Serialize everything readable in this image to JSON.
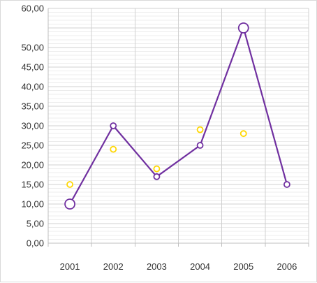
{
  "chart_data": {
    "type": "line",
    "categories": [
      "2001",
      "2002",
      "2003",
      "2004",
      "2005",
      "2006"
    ],
    "ylim": [
      0,
      60
    ],
    "yticks": [
      "0,00",
      "5,00",
      "10,00",
      "15,00",
      "20,00",
      "25,00",
      "30,00",
      "35,00",
      "40,00",
      "45,00",
      "50,00",
      "60,00"
    ],
    "ytick_values": [
      0,
      5,
      10,
      15,
      20,
      25,
      30,
      35,
      40,
      45,
      50,
      60
    ],
    "grid": true,
    "legend": "none",
    "series": [
      {
        "type": "line",
        "values": [
          10,
          30,
          17,
          25,
          55,
          15
        ],
        "marker_sizes": [
          1.4,
          1,
          1,
          1,
          1.4,
          1
        ],
        "color": "#7030a0"
      },
      {
        "type": "scatter",
        "values": [
          15,
          24,
          19,
          29,
          28,
          null
        ],
        "color": "#ffd700"
      }
    ]
  }
}
